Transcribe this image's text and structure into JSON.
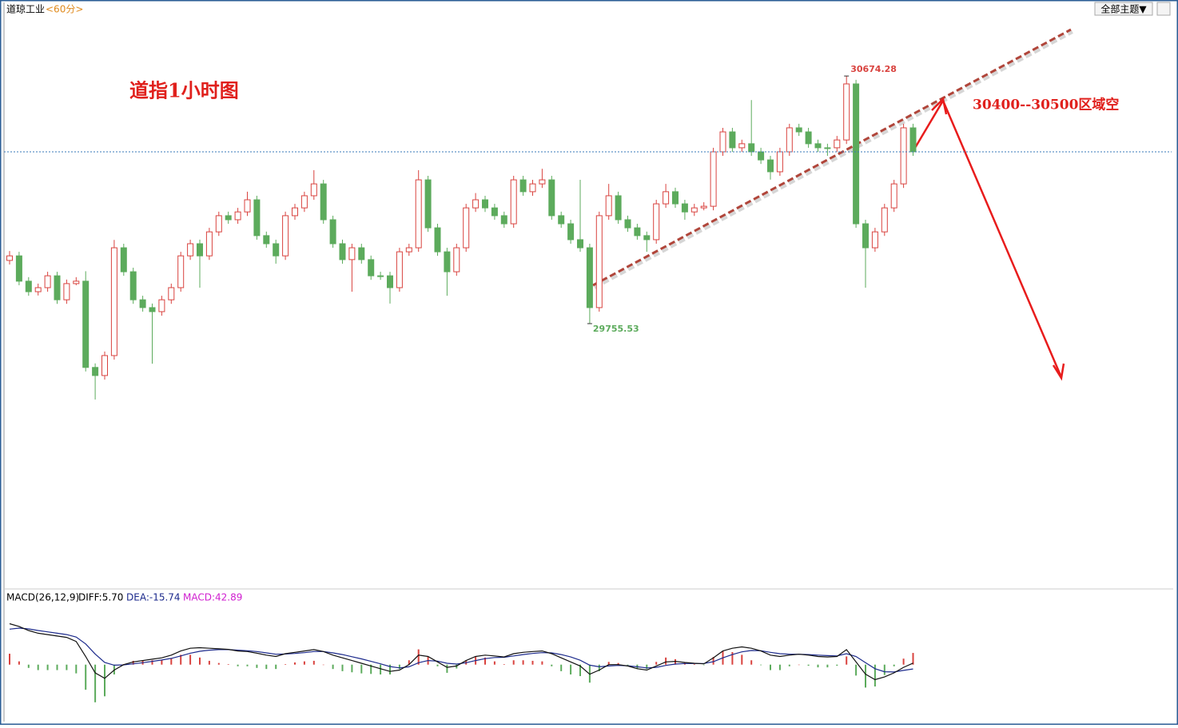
{
  "chart_data": {
    "type": "candlestick",
    "title": "道琼工业",
    "period": "<60分>",
    "theme_button": "全部主题▼",
    "annotations": {
      "chart_title": "道指1小时图",
      "target": "30400--30500区域空"
    },
    "high_mark": 30674.28,
    "low_mark": 29755.53,
    "ylim": [
      28777,
      30897
    ],
    "up_color": "#d9433f",
    "down_color": "#5cab5c",
    "last_line_color": "#3a78b8",
    "candles": [
      [
        29990,
        30025,
        29975,
        30007
      ],
      [
        30007,
        30022,
        29898,
        29913
      ],
      [
        29913,
        29928,
        29859,
        29874
      ],
      [
        29874,
        29904,
        29860,
        29889
      ],
      [
        29889,
        29948,
        29874,
        29933
      ],
      [
        29933,
        29948,
        29829,
        29844
      ],
      [
        29844,
        29919,
        29829,
        29904
      ],
      [
        29904,
        29928,
        29898,
        29913
      ],
      [
        29913,
        29950,
        29578,
        29593
      ],
      [
        29593,
        29608,
        29474,
        29563
      ],
      [
        29563,
        29652,
        29548,
        29637
      ],
      [
        29637,
        30066,
        29622,
        30037
      ],
      [
        30037,
        30052,
        29933,
        29948
      ],
      [
        29948,
        29963,
        29829,
        29844
      ],
      [
        29844,
        29859,
        29800,
        29815
      ],
      [
        29815,
        29830,
        29607,
        29800
      ],
      [
        29800,
        29859,
        29785,
        29844
      ],
      [
        29844,
        29904,
        29829,
        29889
      ],
      [
        29889,
        30022,
        29874,
        30007
      ],
      [
        30007,
        30067,
        29992,
        30052
      ],
      [
        30052,
        30067,
        29889,
        30007
      ],
      [
        30007,
        30111,
        29992,
        30096
      ],
      [
        30096,
        30171,
        30081,
        30156
      ],
      [
        30156,
        30171,
        30126,
        30141
      ],
      [
        30141,
        30185,
        30126,
        30170
      ],
      [
        30170,
        30245,
        30155,
        30215
      ],
      [
        30215,
        30230,
        30067,
        30082
      ],
      [
        30082,
        30097,
        30037,
        30052
      ],
      [
        30052,
        30067,
        29978,
        30007
      ],
      [
        30007,
        30171,
        29992,
        30156
      ],
      [
        30156,
        30200,
        30141,
        30185
      ],
      [
        30185,
        30245,
        30170,
        30230
      ],
      [
        30230,
        30325,
        30215,
        30274
      ],
      [
        30274,
        30289,
        30126,
        30141
      ],
      [
        30141,
        30156,
        30037,
        30052
      ],
      [
        30052,
        30067,
        29978,
        29993
      ],
      [
        29993,
        30052,
        29874,
        30037
      ],
      [
        30037,
        30052,
        29978,
        29993
      ],
      [
        29993,
        30008,
        29918,
        29933
      ],
      [
        29933,
        29948,
        29918,
        29933
      ],
      [
        29933,
        29948,
        29830,
        29889
      ],
      [
        29889,
        30037,
        29874,
        30022
      ],
      [
        30022,
        30052,
        30007,
        30037
      ],
      [
        30037,
        30325,
        30022,
        30289
      ],
      [
        30289,
        30304,
        30096,
        30111
      ],
      [
        30111,
        30126,
        30007,
        30022
      ],
      [
        30022,
        30037,
        29859,
        29948
      ],
      [
        29948,
        30052,
        29933,
        30037
      ],
      [
        30037,
        30200,
        30022,
        30185
      ],
      [
        30185,
        30240,
        30170,
        30215
      ],
      [
        30215,
        30230,
        30170,
        30185
      ],
      [
        30185,
        30200,
        30141,
        30156
      ],
      [
        30156,
        30171,
        30111,
        30126
      ],
      [
        30126,
        30304,
        30111,
        30289
      ],
      [
        30289,
        30304,
        30230,
        30245
      ],
      [
        30245,
        30289,
        30230,
        30274
      ],
      [
        30274,
        30330,
        30259,
        30289
      ],
      [
        30289,
        30304,
        30141,
        30156
      ],
      [
        30156,
        30171,
        30111,
        30126
      ],
      [
        30126,
        30141,
        30052,
        30067
      ],
      [
        30067,
        30289,
        30022,
        30037
      ],
      [
        30037,
        30052,
        29755.53,
        29815
      ],
      [
        29815,
        30171,
        29800,
        30156
      ],
      [
        30156,
        30274,
        30141,
        30230
      ],
      [
        30230,
        30245,
        30126,
        30141
      ],
      [
        30141,
        30156,
        30096,
        30111
      ],
      [
        30111,
        30126,
        30067,
        30082
      ],
      [
        30082,
        30097,
        30022,
        30067
      ],
      [
        30067,
        30215,
        30052,
        30200
      ],
      [
        30200,
        30274,
        30185,
        30245
      ],
      [
        30245,
        30260,
        30185,
        30200
      ],
      [
        30200,
        30215,
        30141,
        30170
      ],
      [
        30170,
        30200,
        30155,
        30185
      ],
      [
        30185,
        30206,
        30176,
        30191
      ],
      [
        30191,
        30408,
        30176,
        30393
      ],
      [
        30393,
        30482,
        30378,
        30467
      ],
      [
        30467,
        30482,
        30393,
        30408
      ],
      [
        30408,
        30438,
        30393,
        30423
      ],
      [
        30423,
        30585,
        30378,
        30393
      ],
      [
        30393,
        30408,
        30348,
        30363
      ],
      [
        30363,
        30378,
        30290,
        30319
      ],
      [
        30319,
        30408,
        30304,
        30393
      ],
      [
        30393,
        30497,
        30378,
        30482
      ],
      [
        30482,
        30497,
        30452,
        30467
      ],
      [
        30467,
        30482,
        30408,
        30423
      ],
      [
        30423,
        30438,
        30393,
        30408
      ],
      [
        30408,
        30423,
        30378,
        30408
      ],
      [
        30408,
        30452,
        30393,
        30437
      ],
      [
        30437,
        30674.28,
        30422,
        30645
      ],
      [
        30645,
        30660,
        30111,
        30126
      ],
      [
        30126,
        30141,
        29889,
        30037
      ],
      [
        30037,
        30111,
        30022,
        30096
      ],
      [
        30096,
        30200,
        30081,
        30185
      ],
      [
        30185,
        30289,
        30170,
        30274
      ],
      [
        30274,
        30497,
        30259,
        30482
      ],
      [
        30482,
        30497,
        30378,
        30393
      ]
    ],
    "macd": {
      "label": "MACD(26,12,9)",
      "diff_label": "DIFF:5.70",
      "dea_label": "DEA:-15.74",
      "macd_label": "MACD:42.89",
      "ylim": [
        -200,
        210
      ],
      "diff_color": "#111111",
      "dea_color": "#1c2a8c",
      "macd_color": "#d020d0",
      "diff": [
        150,
        140,
        125,
        115,
        110,
        105,
        100,
        85,
        30,
        -30,
        -50,
        -20,
        0,
        10,
        15,
        20,
        25,
        35,
        50,
        60,
        62,
        60,
        58,
        56,
        50,
        48,
        42,
        35,
        30,
        40,
        45,
        50,
        55,
        48,
        35,
        25,
        15,
        5,
        -5,
        -15,
        -25,
        -20,
        0,
        35,
        30,
        10,
        -10,
        -5,
        15,
        30,
        35,
        32,
        28,
        40,
        45,
        48,
        50,
        40,
        25,
        10,
        -5,
        -35,
        -20,
        0,
        0,
        -5,
        -15,
        -20,
        -5,
        10,
        12,
        8,
        5,
        3,
        25,
        50,
        60,
        65,
        60,
        50,
        35,
        30,
        35,
        38,
        35,
        30,
        28,
        30,
        55,
        10,
        -35,
        -55,
        -45,
        -30,
        -10,
        5.7
      ],
      "dea": [
        130,
        134,
        131,
        125,
        120,
        115,
        110,
        101,
        76,
        39,
        8,
        -2,
        -1,
        3,
        7,
        12,
        17,
        23,
        32,
        42,
        49,
        53,
        55,
        55,
        53,
        51,
        48,
        43,
        38,
        39,
        41,
        44,
        48,
        48,
        43,
        37,
        29,
        21,
        12,
        3,
        -7,
        -12,
        -8,
        7,
        15,
        13,
        5,
        2,
        7,
        15,
        22,
        26,
        27,
        32,
        37,
        41,
        44,
        43,
        37,
        28,
        16,
        -2,
        -8,
        -5,
        -3,
        -4,
        -8,
        -12,
        -10,
        -3,
        2,
        4,
        4,
        4,
        11,
        25,
        37,
        47,
        52,
        51,
        45,
        40,
        38,
        38,
        37,
        35,
        33,
        32,
        40,
        30,
        7,
        -15,
        -26,
        -27,
        -21,
        -15.74
      ],
      "hist": [
        40,
        12,
        -12,
        -20,
        -20,
        -20,
        -20,
        -32,
        -92,
        -138,
        -116,
        -36,
        2,
        14,
        16,
        16,
        16,
        24,
        36,
        36,
        26,
        14,
        6,
        2,
        -6,
        -6,
        -12,
        -16,
        -16,
        2,
        8,
        12,
        14,
        0,
        -16,
        -24,
        -28,
        -32,
        -34,
        -36,
        -36,
        -16,
        16,
        56,
        30,
        -6,
        -30,
        -14,
        16,
        30,
        26,
        12,
        2,
        16,
        16,
        14,
        12,
        -6,
        -24,
        -36,
        -42,
        -66,
        -24,
        10,
        6,
        -2,
        -14,
        -16,
        10,
        26,
        20,
        8,
        2,
        -2,
        28,
        50,
        46,
        36,
        16,
        -2,
        -20,
        -20,
        -6,
        0,
        -4,
        -10,
        -10,
        -4,
        30,
        -40,
        -84,
        -80,
        -38,
        -6,
        22,
        42.89
      ]
    }
  }
}
